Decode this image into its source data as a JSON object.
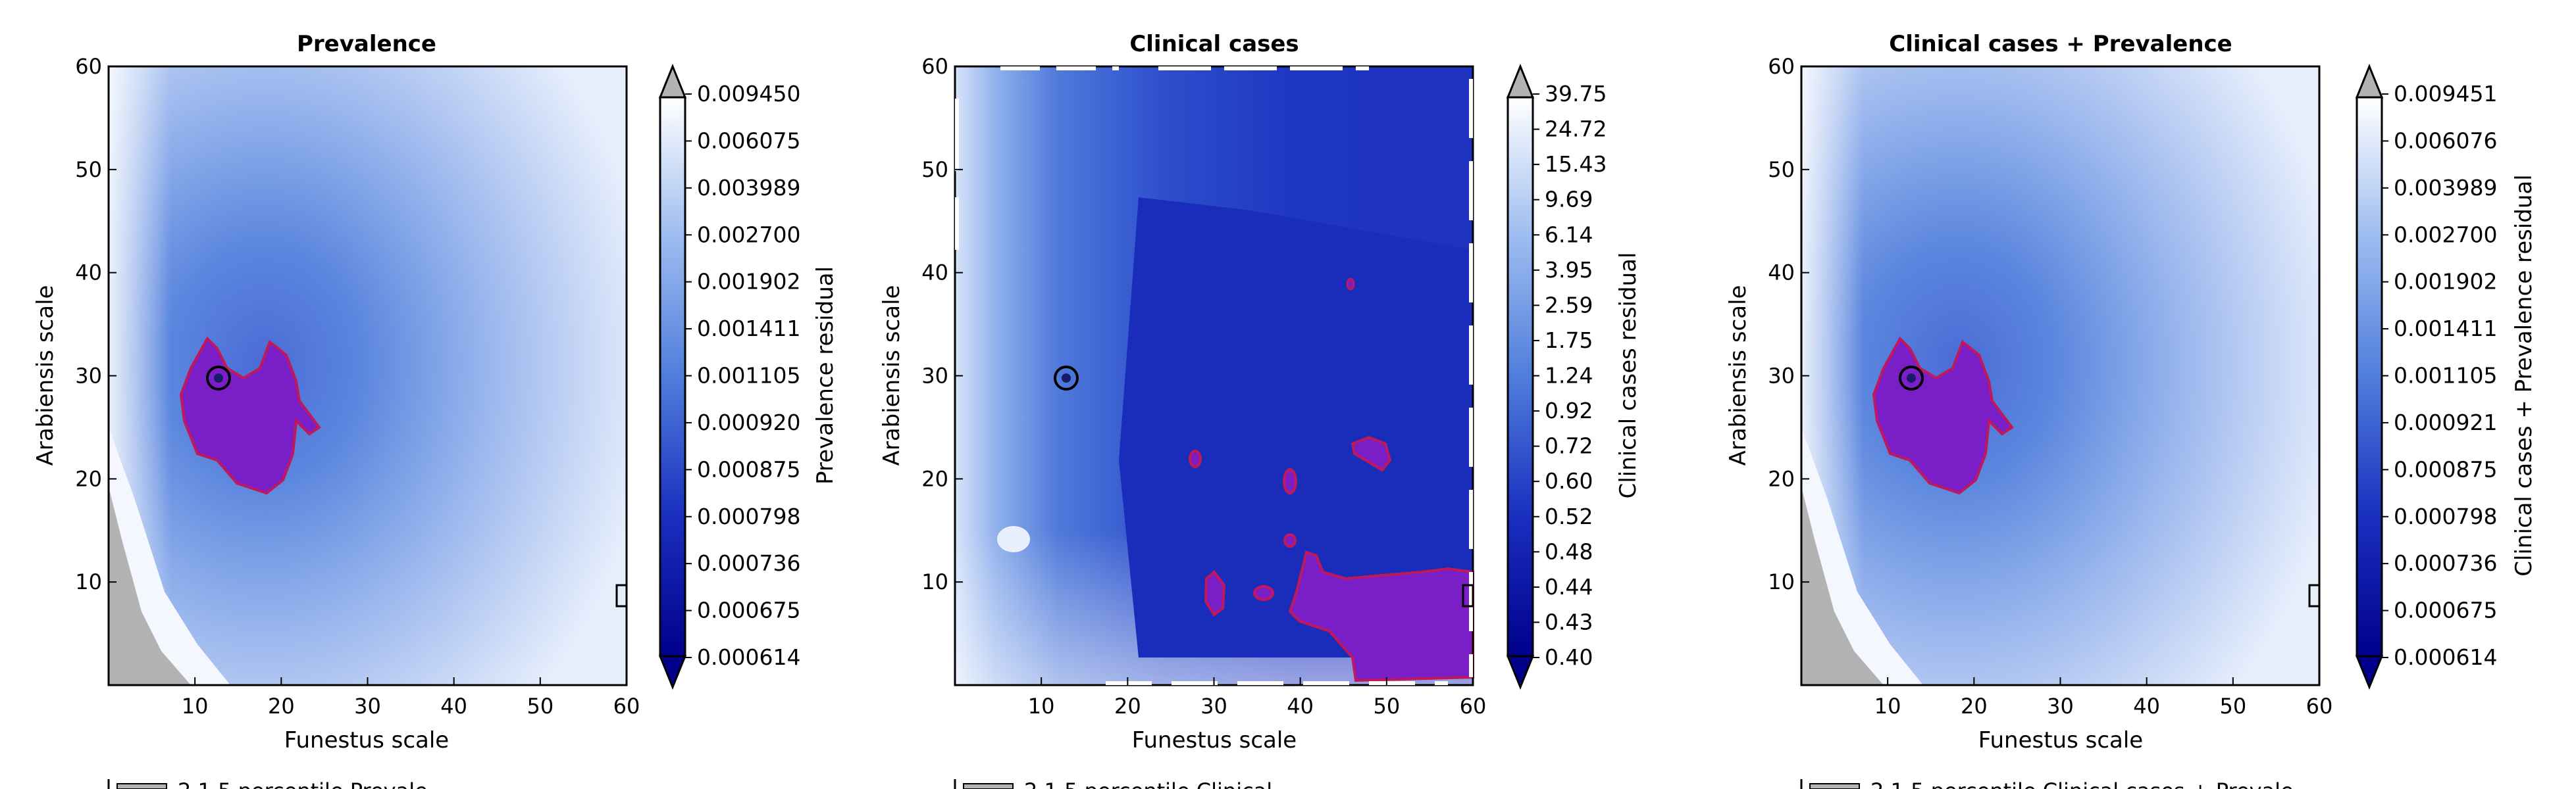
{
  "chart_data": [
    {
      "type": "heatmap",
      "title": "Prevalence",
      "xlabel": "Funestus scale",
      "ylabel": "Arabiensis scale",
      "xlim": [
        0,
        60
      ],
      "ylim": [
        0,
        60
      ],
      "xticks": [
        "10",
        "20",
        "30",
        "40",
        "50",
        "60"
      ],
      "yticks": [
        "10",
        "20",
        "30",
        "40",
        "50",
        "60"
      ],
      "colorbar_label": "Prevalence residual",
      "colorbar_levels": [
        "0.009450",
        "0.006075",
        "0.003989",
        "0.002700",
        "0.001902",
        "0.001411",
        "0.001105",
        "0.000920",
        "0.000875",
        "0.000798",
        "0.000736",
        "0.000675",
        "0.000614"
      ],
      "marker": {
        "x": 13,
        "y": 30
      },
      "legend_partial": "2.1.5 percentile Prevale"
    },
    {
      "type": "heatmap",
      "title": "Clinical cases",
      "xlabel": "Funestus scale",
      "ylabel": "Arabiensis scale",
      "xlim": [
        0,
        60
      ],
      "ylim": [
        0,
        60
      ],
      "xticks": [
        "10",
        "20",
        "30",
        "40",
        "50",
        "60"
      ],
      "yticks": [
        "10",
        "20",
        "30",
        "40",
        "50",
        "60"
      ],
      "colorbar_label": "Clinical cases residual",
      "colorbar_levels": [
        "39.75",
        "24.72",
        "15.43",
        "9.69",
        "6.14",
        "3.95",
        "2.59",
        "1.75",
        "1.24",
        "0.92",
        "0.72",
        "0.60",
        "0.52",
        "0.48",
        "0.44",
        "0.43",
        "0.40"
      ],
      "marker": {
        "x": 13,
        "y": 30
      },
      "legend_partial": "2.1.5 percentile Clinical"
    },
    {
      "type": "heatmap",
      "title": "Clinical cases + Prevalence",
      "xlabel": "Funestus scale",
      "ylabel": "Arabiensis scale",
      "xlim": [
        0,
        60
      ],
      "ylim": [
        0,
        60
      ],
      "xticks": [
        "10",
        "20",
        "30",
        "40",
        "50",
        "60"
      ],
      "yticks": [
        "10",
        "20",
        "30",
        "40",
        "50",
        "60"
      ],
      "colorbar_label": "Clinical cases + Prevalence residual",
      "colorbar_levels": [
        "0.009451",
        "0.006076",
        "0.003989",
        "0.002700",
        "0.001902",
        "0.001411",
        "0.001105",
        "0.000921",
        "0.000875",
        "0.000798",
        "0.000736",
        "0.000675",
        "0.000614"
      ],
      "marker": {
        "x": 13,
        "y": 30
      },
      "legend_partial": "2.1.5 percentile Clinical cases + Prevale"
    }
  ],
  "colors": {
    "colorbar_low": "#00008b",
    "colorbar_mid": "#4f7ddb",
    "colorbar_high": "#ffffff",
    "over": "#b3b3b3",
    "highlight_region": "#7a1fc8",
    "highlight_edge": "#c0185a",
    "gray_region": "#b3b3b3"
  }
}
